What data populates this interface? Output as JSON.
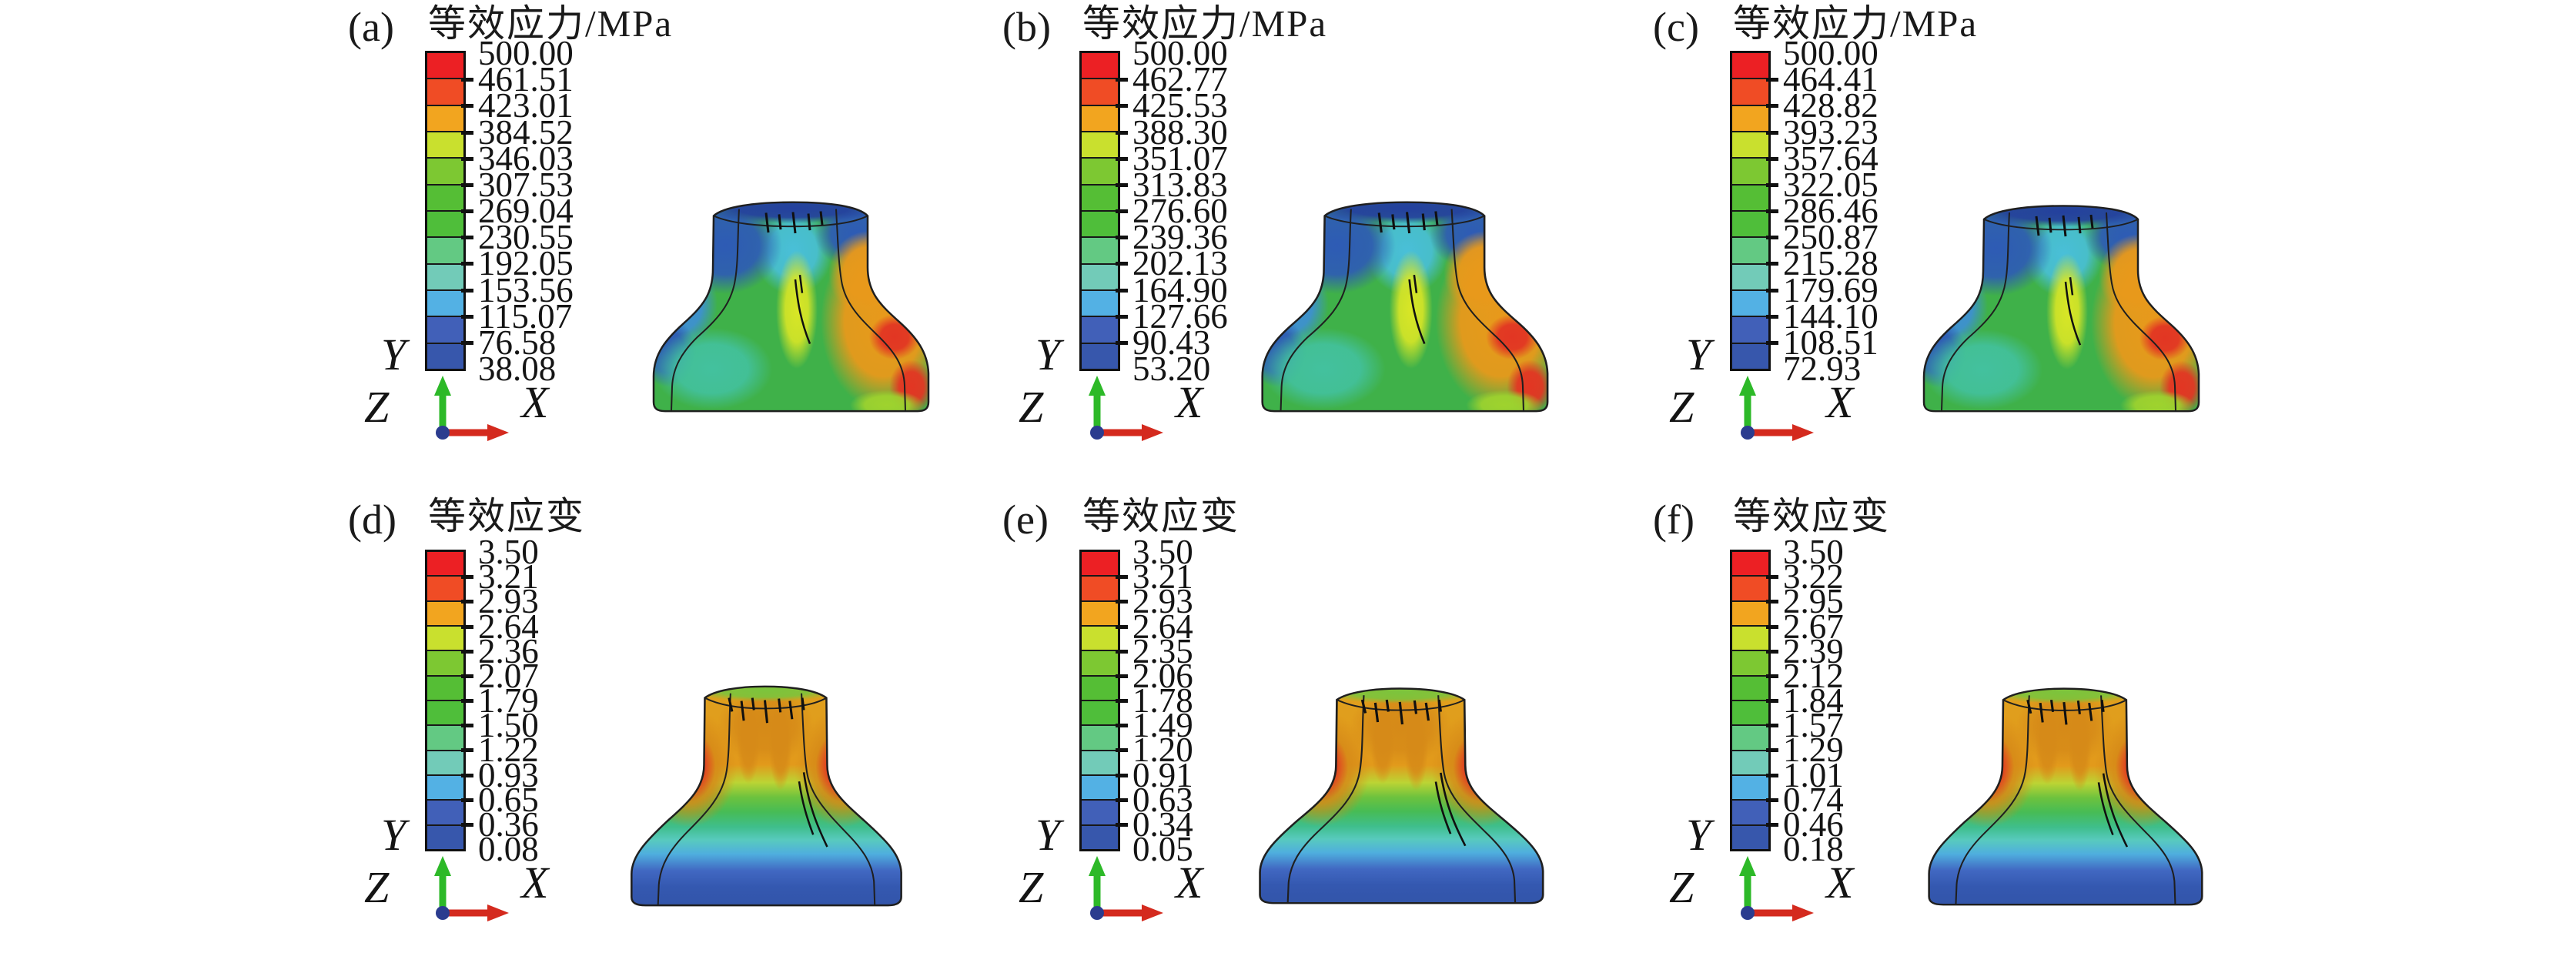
{
  "figure": {
    "background": "#ffffff",
    "triad": {
      "up": "Y",
      "back": "Z",
      "right": "X",
      "colors": {
        "y_arrow": "#2db928",
        "x_arrow": "#d42a1e",
        "origin_dot": "#2b3c8f"
      }
    },
    "colorbar_colors": [
      "#ec2024",
      "#f04c25",
      "#f2a51f",
      "#c9e02e",
      "#7dc832",
      "#55be35",
      "#4fbe3a",
      "#63c983",
      "#72cbb8",
      "#53b1e4",
      "#4160b8",
      "#3757ac"
    ],
    "panels": [
      {
        "label": "(a)",
        "title": "等效应力/MPa",
        "values": [
          "500.00",
          "461.51",
          "423.01",
          "384.52",
          "346.03",
          "307.53",
          "269.04",
          "230.55",
          "192.05",
          "153.56",
          "115.07",
          "76.58",
          "38.08"
        ]
      },
      {
        "label": "(b)",
        "title": "等效应力/MPa",
        "values": [
          "500.00",
          "462.77",
          "425.53",
          "388.30",
          "351.07",
          "313.83",
          "276.60",
          "239.36",
          "202.13",
          "164.90",
          "127.66",
          "90.43",
          "53.20"
        ]
      },
      {
        "label": "(c)",
        "title": "等效应力/MPa",
        "values": [
          "500.00",
          "464.41",
          "428.82",
          "393.23",
          "357.64",
          "322.05",
          "286.46",
          "250.87",
          "215.28",
          "179.69",
          "144.10",
          "108.51",
          "72.93"
        ]
      },
      {
        "label": "(d)",
        "title": "等效应变",
        "values": [
          "3.50",
          "3.21",
          "2.93",
          "2.64",
          "2.36",
          "2.07",
          "1.79",
          "1.50",
          "1.22",
          "0.93",
          "0.65",
          "0.36",
          "0.08"
        ]
      },
      {
        "label": "(e)",
        "title": "等效应变",
        "values": [
          "3.50",
          "3.21",
          "2.93",
          "2.64",
          "2.35",
          "2.06",
          "1.78",
          "1.49",
          "1.20",
          "0.91",
          "0.63",
          "0.34",
          "0.05"
        ]
      },
      {
        "label": "(f)",
        "title": "等效应变",
        "values": [
          "3.50",
          "3.22",
          "2.95",
          "2.67",
          "2.39",
          "2.12",
          "1.84",
          "1.57",
          "1.29",
          "1.01",
          "0.74",
          "0.46",
          "0.18"
        ]
      }
    ]
  },
  "chart_data": [
    {
      "type": "heatmap",
      "panel": "(a)",
      "title": "等效应力/MPa",
      "quantity": "equivalent stress",
      "unit": "MPa",
      "colorbar_levels": [
        500.0,
        461.51,
        423.01,
        384.52,
        346.03,
        307.53,
        269.04,
        230.55,
        192.05,
        153.56,
        115.07,
        76.58,
        38.08
      ],
      "min": 38.08,
      "max": 500.0,
      "legend_position": "left",
      "description": "FEA contour plot of forged part cross-section, stress: blue top/left, green body, orange-red right flank"
    },
    {
      "type": "heatmap",
      "panel": "(b)",
      "title": "等效应力/MPa",
      "quantity": "equivalent stress",
      "unit": "MPa",
      "colorbar_levels": [
        500.0,
        462.77,
        425.53,
        388.3,
        351.07,
        313.83,
        276.6,
        239.36,
        202.13,
        164.9,
        127.66,
        90.43,
        53.2
      ],
      "min": 53.2,
      "max": 500.0,
      "legend_position": "left",
      "description": "FEA contour plot of forged part cross-section, stress distribution"
    },
    {
      "type": "heatmap",
      "panel": "(c)",
      "title": "等效应力/MPa",
      "quantity": "equivalent stress",
      "unit": "MPa",
      "colorbar_levels": [
        500.0,
        464.41,
        428.82,
        393.23,
        357.64,
        322.05,
        286.46,
        250.87,
        215.28,
        179.69,
        144.1,
        108.51,
        72.93
      ],
      "min": 72.93,
      "max": 500.0,
      "legend_position": "left",
      "description": "FEA contour plot of forged part cross-section, stress distribution"
    },
    {
      "type": "heatmap",
      "panel": "(d)",
      "title": "等效应变",
      "quantity": "equivalent strain",
      "unit": "",
      "colorbar_levels": [
        3.5,
        3.21,
        2.93,
        2.64,
        2.36,
        2.07,
        1.79,
        1.5,
        1.22,
        0.93,
        0.65,
        0.36,
        0.08
      ],
      "min": 0.08,
      "max": 3.5,
      "legend_position": "left",
      "description": "FEA contour plot, strain: banded blue base rising to orange neck with red hotspots at shoulders"
    },
    {
      "type": "heatmap",
      "panel": "(e)",
      "title": "等效应变",
      "quantity": "equivalent strain",
      "unit": "",
      "colorbar_levels": [
        3.5,
        3.21,
        2.93,
        2.64,
        2.35,
        2.06,
        1.78,
        1.49,
        1.2,
        0.91,
        0.63,
        0.34,
        0.05
      ],
      "min": 0.05,
      "max": 3.5,
      "legend_position": "left",
      "description": "FEA contour plot, strain distribution"
    },
    {
      "type": "heatmap",
      "panel": "(f)",
      "title": "等效应变",
      "quantity": "equivalent strain",
      "unit": "",
      "colorbar_levels": [
        3.5,
        3.22,
        2.95,
        2.67,
        2.39,
        2.12,
        1.84,
        1.57,
        1.29,
        1.01,
        0.74,
        0.46,
        0.18
      ],
      "min": 0.18,
      "max": 3.5,
      "legend_position": "left",
      "description": "FEA contour plot, strain distribution"
    }
  ]
}
